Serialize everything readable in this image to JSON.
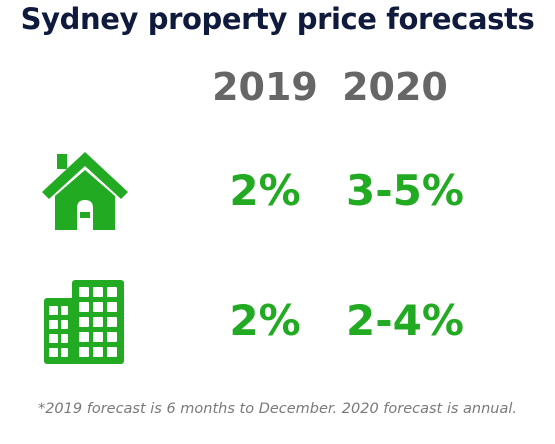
{
  "title": "Sydney property price forecasts",
  "years": [
    "2019",
    "2020"
  ],
  "rows": [
    {
      "icon": "house-icon",
      "values": [
        "2%",
        "3-5%"
      ]
    },
    {
      "icon": "apartment-building-icon",
      "values": [
        "2%",
        "2-4%"
      ]
    }
  ],
  "footnote": "*2019 forecast is 6 months to December. 2020 forecast is annual.",
  "colors": {
    "title": "#0f1a3c",
    "year": "#666666",
    "value": "#22aa22",
    "icon": "#22aa22",
    "footnote": "#7a7a7a"
  }
}
